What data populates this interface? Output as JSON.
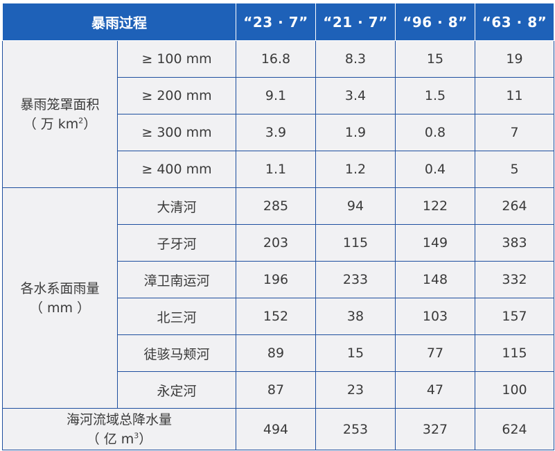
{
  "header": {
    "process_label": "暴雨过程",
    "years": [
      "“23 · 7”",
      "“21 · 7”",
      "“96 · 8”",
      "“63 · 8”"
    ]
  },
  "sections": [
    {
      "label_line1": "暴雨笼罩面积",
      "label_line2_pre": "（ 万 km",
      "label_sup": "2",
      "label_line2_post": "）",
      "rows": [
        {
          "label": "≥ 100  mm",
          "values": [
            "16.8",
            "8.3",
            "15",
            "19"
          ]
        },
        {
          "label": "≥ 200  mm",
          "values": [
            "9.1",
            "3.4",
            "1.5",
            "11"
          ]
        },
        {
          "label": "≥ 300  mm",
          "values": [
            "3.9",
            "1.9",
            "0.8",
            "7"
          ]
        },
        {
          "label": "≥ 400  mm",
          "values": [
            "1.1",
            "1.2",
            "0.4",
            "5"
          ]
        }
      ]
    },
    {
      "label_line1": "各水系面雨量",
      "label_line2": "（ mm ）",
      "rows": [
        {
          "label": "大清河",
          "values": [
            "285",
            "94",
            "122",
            "264"
          ]
        },
        {
          "label": "子牙河",
          "values": [
            "203",
            "115",
            "149",
            "383"
          ]
        },
        {
          "label": "漳卫南运河",
          "values": [
            "196",
            "233",
            "148",
            "332"
          ]
        },
        {
          "label": "北三河",
          "values": [
            "152",
            "38",
            "103",
            "157"
          ]
        },
        {
          "label": "徒骇马颊河",
          "values": [
            "89",
            "15",
            "77",
            "115"
          ]
        },
        {
          "label": "永定河",
          "values": [
            "87",
            "23",
            "47",
            "100"
          ]
        }
      ]
    }
  ],
  "total": {
    "label_line1": "海河流域总降水量",
    "label_line2_pre": "（ 亿 m",
    "label_sup": "3",
    "label_line2_post": "）",
    "values": [
      "494",
      "253",
      "327",
      "624"
    ]
  }
}
